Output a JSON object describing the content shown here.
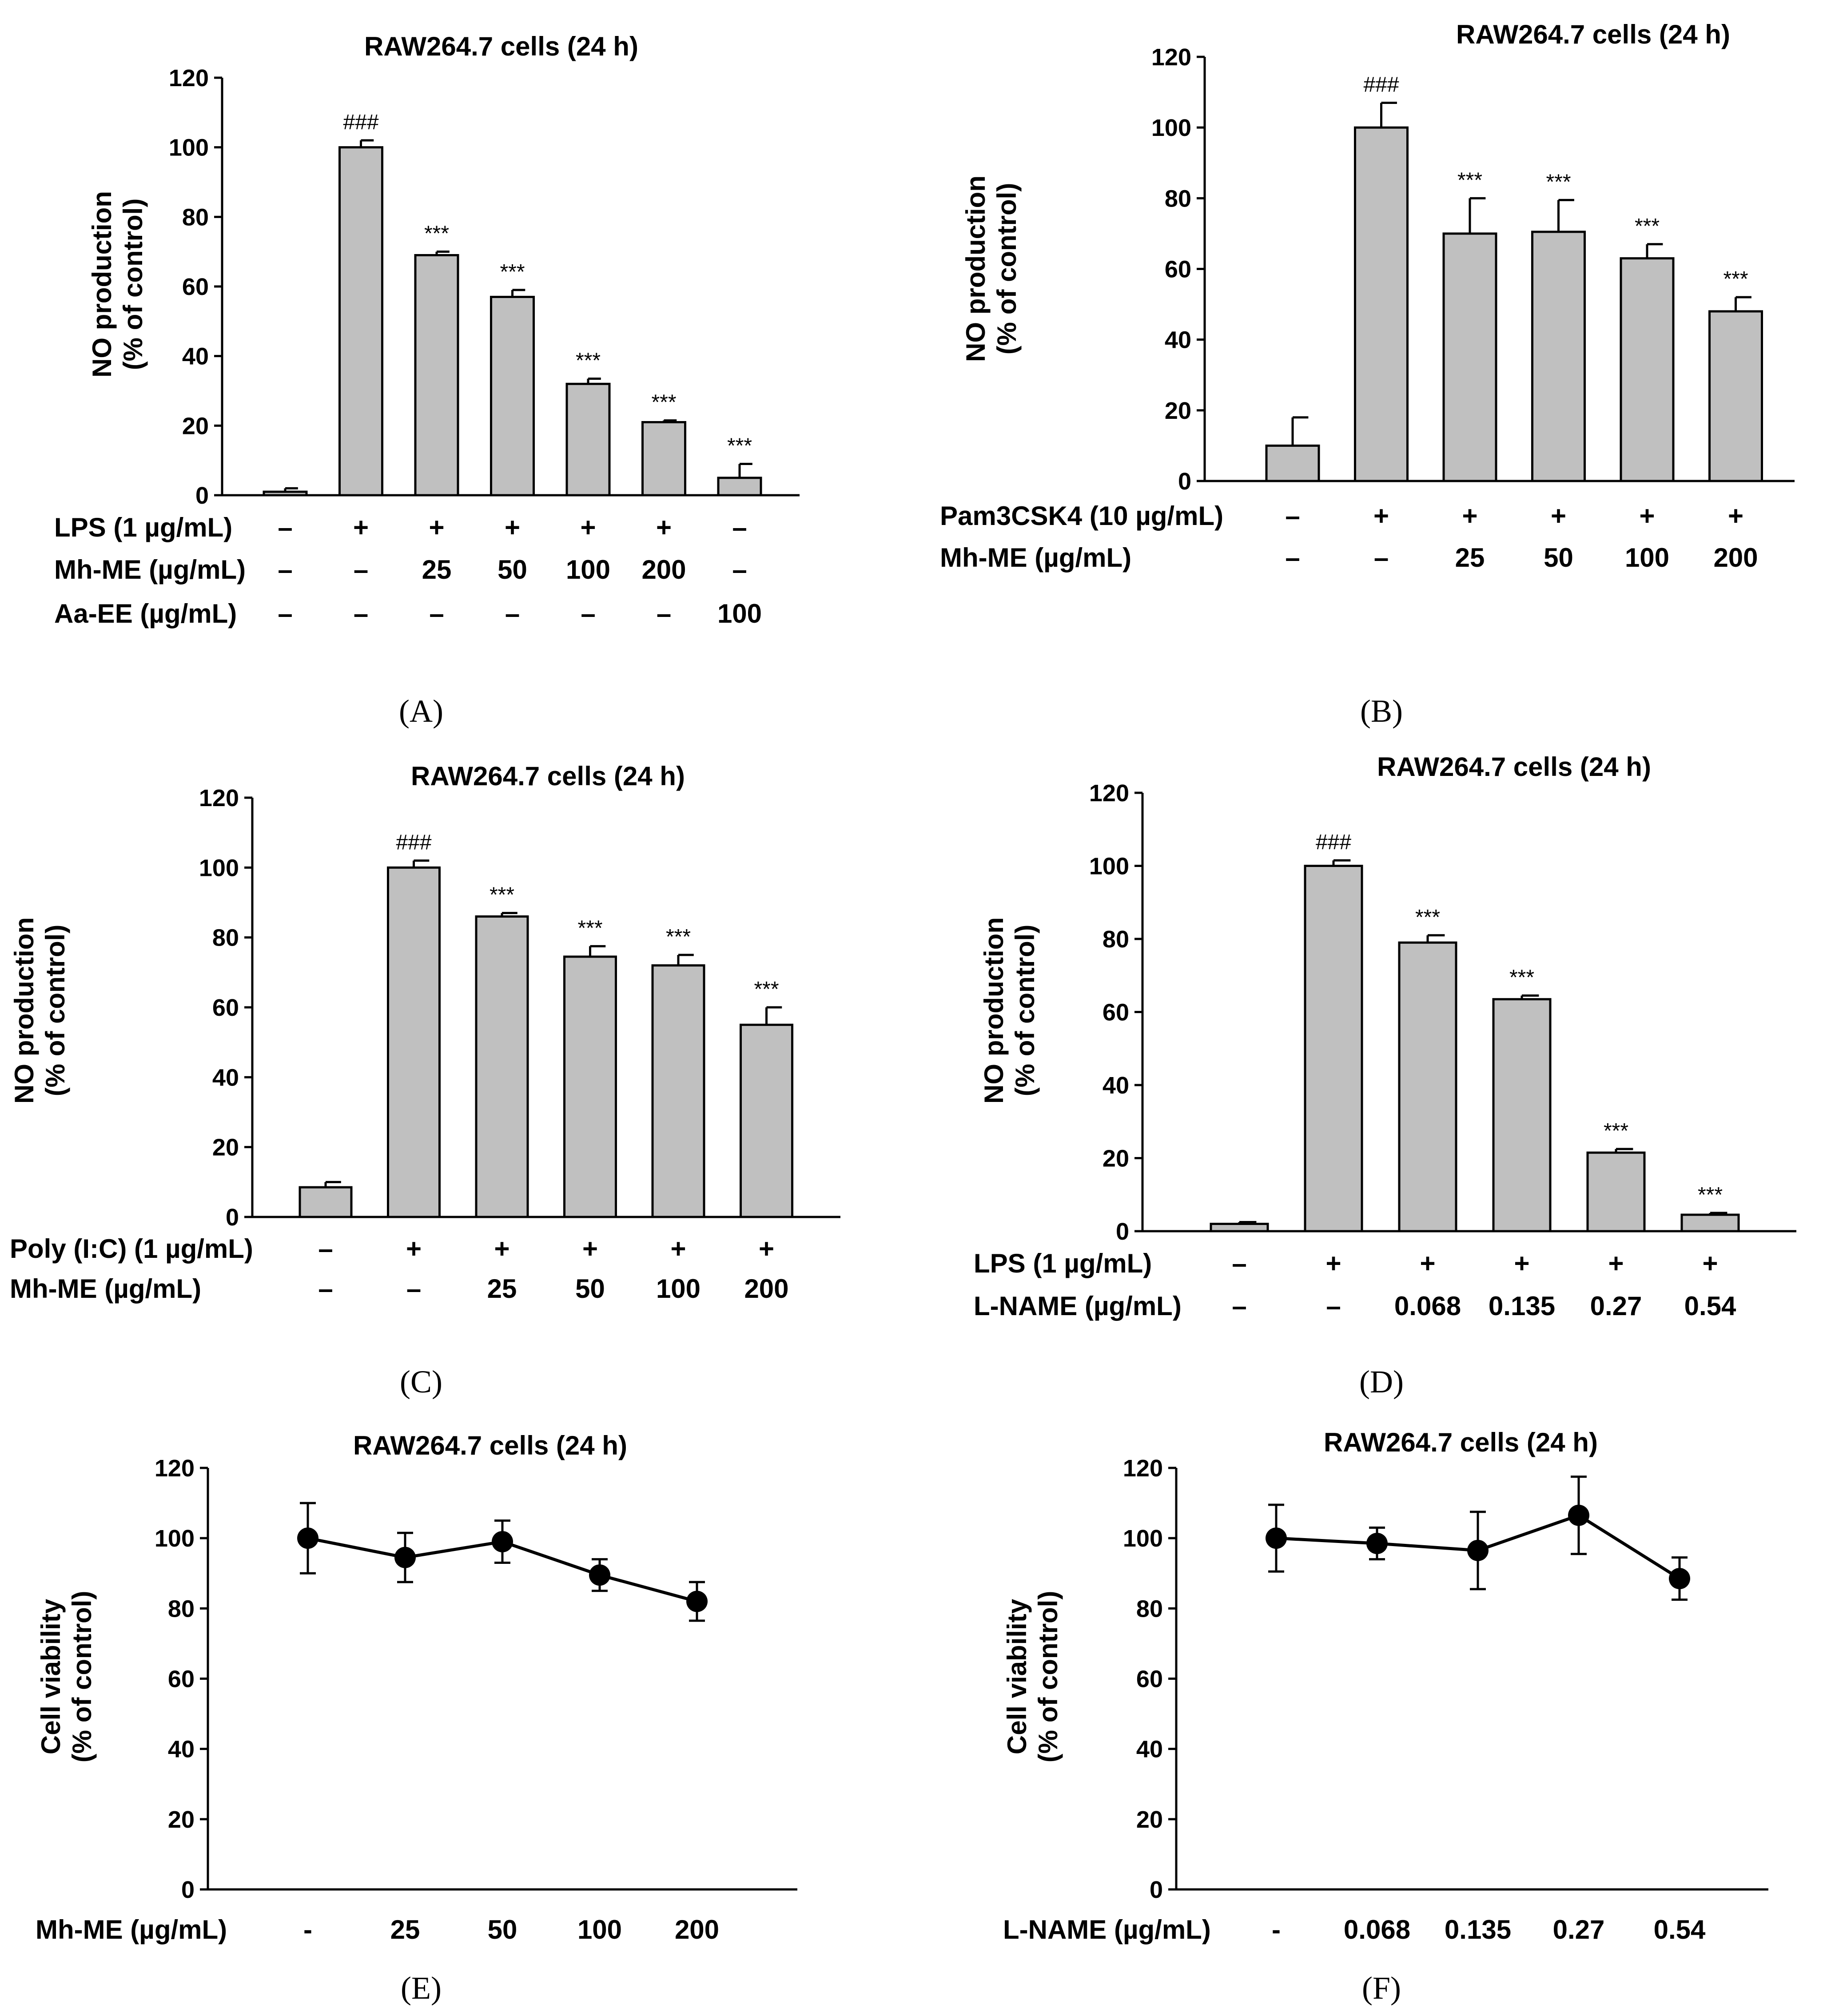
{
  "chart_data": [
    {
      "panel": "A",
      "type": "bar",
      "title": "RAW264.7 cells (24 h)",
      "ylabel": [
        "NO production",
        "(% of control)"
      ],
      "ylim": [
        0,
        120
      ],
      "yticks": [
        0,
        20,
        40,
        60,
        80,
        100,
        120
      ],
      "values": [
        1,
        100,
        69,
        57,
        32,
        21,
        5
      ],
      "errors": [
        1,
        2,
        1,
        2,
        1.5,
        0.5,
        4
      ],
      "significance": [
        "",
        "###",
        "***",
        "***",
        "***",
        "***",
        "***"
      ],
      "condition_rows": [
        {
          "label": "LPS (1 µg/mL)",
          "values": [
            "–",
            "+",
            "+",
            "+",
            "+",
            "+",
            "–"
          ]
        },
        {
          "label": "Mh-ME (µg/mL)",
          "values": [
            "–",
            "–",
            "25",
            "50",
            "100",
            "200",
            "–"
          ]
        },
        {
          "label": "Aa-EE (µg/mL)",
          "values": [
            "–",
            "–",
            "–",
            "–",
            "–",
            "–",
            "100"
          ]
        }
      ]
    },
    {
      "panel": "B",
      "type": "bar",
      "title": "RAW264.7 cells (24 h)",
      "ylabel": [
        "NO production",
        "(% of control)"
      ],
      "ylim": [
        0,
        120
      ],
      "yticks": [
        0,
        20,
        40,
        60,
        80,
        100,
        120
      ],
      "values": [
        10,
        100,
        70,
        70.5,
        63,
        48
      ],
      "errors": [
        8,
        7,
        10,
        9,
        4,
        4
      ],
      "significance": [
        "",
        "###",
        "***",
        "***",
        "***",
        "***"
      ],
      "condition_rows": [
        {
          "label": "Pam3CSK4 (10 µg/mL)",
          "values": [
            "–",
            "+",
            "+",
            "+",
            "+",
            "+"
          ]
        },
        {
          "label": "Mh-ME (µg/mL)",
          "values": [
            "–",
            "–",
            "25",
            "50",
            "100",
            "200"
          ]
        }
      ]
    },
    {
      "panel": "C",
      "type": "bar",
      "title": "RAW264.7 cells (24 h)",
      "ylabel": [
        "NO production",
        "(% of control)"
      ],
      "ylim": [
        0,
        120
      ],
      "yticks": [
        0,
        20,
        40,
        60,
        80,
        100,
        120
      ],
      "values": [
        8.5,
        100,
        86,
        74.5,
        72,
        55
      ],
      "errors": [
        1.5,
        2,
        1,
        3,
        3,
        5
      ],
      "significance": [
        "",
        "###",
        "***",
        "***",
        "***",
        "***"
      ],
      "condition_rows": [
        {
          "label": "Poly (I:C) (1 µg/mL)",
          "values": [
            "–",
            "+",
            "+",
            "+",
            "+",
            "+"
          ]
        },
        {
          "label": "Mh-ME (µg/mL)",
          "values": [
            "–",
            "–",
            "25",
            "50",
            "100",
            "200"
          ]
        }
      ]
    },
    {
      "panel": "D",
      "type": "bar",
      "title": "RAW264.7 cells (24 h)",
      "ylabel": [
        "NO production",
        "(% of control)"
      ],
      "ylim": [
        0,
        120
      ],
      "yticks": [
        0,
        20,
        40,
        60,
        80,
        100,
        120
      ],
      "values": [
        2,
        100,
        79,
        63.5,
        21.5,
        4.5
      ],
      "errors": [
        0.5,
        1.5,
        2,
        1,
        1,
        0.5
      ],
      "significance": [
        "",
        "###",
        "***",
        "***",
        "***",
        "***"
      ],
      "condition_rows": [
        {
          "label": "LPS (1 µg/mL)",
          "values": [
            "–",
            "+",
            "+",
            "+",
            "+",
            "+"
          ]
        },
        {
          "label": "L-NAME (µg/mL)",
          "values": [
            "–",
            "–",
            "0.068",
            "0.135",
            "0.27",
            "0.54"
          ]
        }
      ]
    },
    {
      "panel": "E",
      "type": "line",
      "title": "RAW264.7 cells (24 h)",
      "ylabel": [
        "Cell viability",
        "(% of control)"
      ],
      "ylim": [
        0,
        120
      ],
      "yticks": [
        0,
        20,
        40,
        60,
        80,
        100,
        120
      ],
      "xlabel": "Mh-ME (µg/mL)",
      "categories": [
        "-",
        "25",
        "50",
        "100",
        "200"
      ],
      "values": [
        100,
        94.5,
        99,
        89.5,
        82
      ],
      "errors": [
        10,
        7,
        6,
        4.5,
        5.5
      ]
    },
    {
      "panel": "F",
      "type": "line",
      "title": "RAW264.7 cells (24 h)",
      "ylabel": [
        "Cell viability",
        "(% of control)"
      ],
      "ylim": [
        0,
        120
      ],
      "yticks": [
        0,
        20,
        40,
        60,
        80,
        100,
        120
      ],
      "xlabel": "L-NAME (µg/mL)",
      "categories": [
        "-",
        "0.068",
        "0.135",
        "0.27",
        "0.54"
      ],
      "values": [
        100,
        98.5,
        96.5,
        106.5,
        88.5
      ],
      "errors": [
        9.5,
        4.5,
        11,
        11,
        6
      ]
    }
  ],
  "panel_labels": {
    "A": "(A)",
    "B": "(B)",
    "C": "(C)",
    "D": "(D)",
    "E": "(E)",
    "F": "(F)"
  }
}
